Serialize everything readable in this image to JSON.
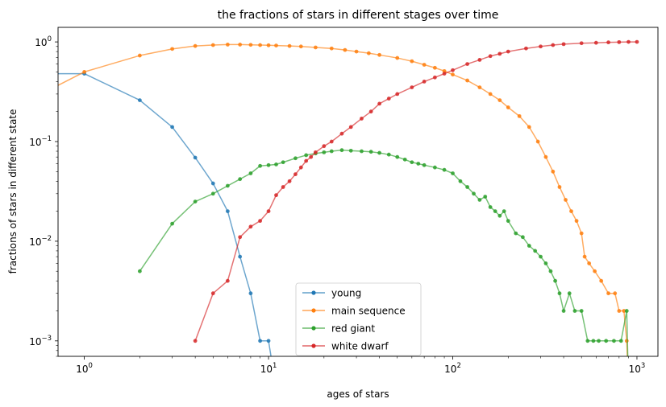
{
  "chart_data": {
    "type": "line",
    "title": "the fractions of stars in different stages over time",
    "xlabel": "ages of stars",
    "ylabel": "fractions of stars in different state",
    "xscale": "log",
    "yscale": "log",
    "xlim": [
      0.72,
      1300
    ],
    "ylim": [
      0.0007,
      1.4
    ],
    "grid": false,
    "legend_position": "lower-center",
    "x_ticks": [
      {
        "value": 1,
        "base": "10",
        "exp": "0"
      },
      {
        "value": 10,
        "base": "10",
        "exp": "1"
      },
      {
        "value": 100,
        "base": "10",
        "exp": "2"
      },
      {
        "value": 1000,
        "base": "10",
        "exp": "3"
      }
    ],
    "y_ticks": [
      {
        "value": 0.001,
        "base": "10",
        "exp": "−3"
      },
      {
        "value": 0.01,
        "base": "10",
        "exp": "−2"
      },
      {
        "value": 0.1,
        "base": "10",
        "exp": "−1"
      },
      {
        "value": 1,
        "base": "10",
        "exp": "0"
      }
    ],
    "series": [
      {
        "name": "young",
        "color": "#1f77b4",
        "points": [
          [
            0,
            0.48
          ],
          [
            1,
            0.48
          ],
          [
            2,
            0.26
          ],
          [
            3,
            0.14
          ],
          [
            4,
            0.069
          ],
          [
            5,
            0.038
          ],
          [
            6,
            0.02
          ],
          [
            7,
            0.007
          ],
          [
            8,
            0.003
          ],
          [
            9,
            0.001
          ],
          [
            10,
            0.001
          ],
          [
            11,
            0
          ]
        ]
      },
      {
        "name": "main sequence",
        "color": "#ff7f0e",
        "points": [
          [
            0,
            0.25
          ],
          [
            1,
            0.5
          ],
          [
            2,
            0.73
          ],
          [
            3,
            0.85
          ],
          [
            4,
            0.91
          ],
          [
            5,
            0.93
          ],
          [
            6,
            0.94
          ],
          [
            7,
            0.94
          ],
          [
            8,
            0.935
          ],
          [
            9,
            0.93
          ],
          [
            10,
            0.925
          ],
          [
            11,
            0.92
          ],
          [
            13,
            0.91
          ],
          [
            15,
            0.9
          ],
          [
            18,
            0.88
          ],
          [
            22,
            0.86
          ],
          [
            26,
            0.83
          ],
          [
            30,
            0.8
          ],
          [
            35,
            0.77
          ],
          [
            40,
            0.74
          ],
          [
            50,
            0.69
          ],
          [
            60,
            0.64
          ],
          [
            70,
            0.59
          ],
          [
            80,
            0.55
          ],
          [
            90,
            0.51
          ],
          [
            100,
            0.47
          ],
          [
            120,
            0.41
          ],
          [
            140,
            0.35
          ],
          [
            160,
            0.3
          ],
          [
            180,
            0.26
          ],
          [
            200,
            0.22
          ],
          [
            230,
            0.18
          ],
          [
            260,
            0.14
          ],
          [
            290,
            0.1
          ],
          [
            320,
            0.07
          ],
          [
            350,
            0.05
          ],
          [
            380,
            0.035
          ],
          [
            410,
            0.026
          ],
          [
            440,
            0.02
          ],
          [
            470,
            0.016
          ],
          [
            500,
            0.012
          ],
          [
            520,
            0.007
          ],
          [
            550,
            0.006
          ],
          [
            590,
            0.005
          ],
          [
            640,
            0.004
          ],
          [
            700,
            0.003
          ],
          [
            760,
            0.003
          ],
          [
            800,
            0.002
          ],
          [
            850,
            0.002
          ],
          [
            880,
            0.001
          ],
          [
            900,
            0
          ]
        ]
      },
      {
        "name": "red giant",
        "color": "#2ca02c",
        "points": [
          [
            2,
            0.005
          ],
          [
            3,
            0.015
          ],
          [
            4,
            0.025
          ],
          [
            5,
            0.03
          ],
          [
            6,
            0.036
          ],
          [
            7,
            0.042
          ],
          [
            8,
            0.048
          ],
          [
            9,
            0.057
          ],
          [
            10,
            0.058
          ],
          [
            11,
            0.059
          ],
          [
            12,
            0.062
          ],
          [
            14,
            0.068
          ],
          [
            16,
            0.073
          ],
          [
            18,
            0.076
          ],
          [
            20,
            0.078
          ],
          [
            22,
            0.08
          ],
          [
            25,
            0.082
          ],
          [
            28,
            0.081
          ],
          [
            32,
            0.08
          ],
          [
            36,
            0.079
          ],
          [
            40,
            0.077
          ],
          [
            45,
            0.074
          ],
          [
            50,
            0.07
          ],
          [
            55,
            0.066
          ],
          [
            60,
            0.062
          ],
          [
            65,
            0.06
          ],
          [
            70,
            0.058
          ],
          [
            80,
            0.055
          ],
          [
            90,
            0.052
          ],
          [
            100,
            0.048
          ],
          [
            110,
            0.04
          ],
          [
            120,
            0.035
          ],
          [
            130,
            0.03
          ],
          [
            140,
            0.026
          ],
          [
            150,
            0.028
          ],
          [
            160,
            0.022
          ],
          [
            170,
            0.02
          ],
          [
            180,
            0.018
          ],
          [
            190,
            0.02
          ],
          [
            200,
            0.016
          ],
          [
            220,
            0.012
          ],
          [
            240,
            0.011
          ],
          [
            260,
            0.009
          ],
          [
            280,
            0.008
          ],
          [
            300,
            0.007
          ],
          [
            320,
            0.006
          ],
          [
            340,
            0.005
          ],
          [
            360,
            0.004
          ],
          [
            380,
            0.003
          ],
          [
            400,
            0.002
          ],
          [
            430,
            0.003
          ],
          [
            460,
            0.002
          ],
          [
            500,
            0.002
          ],
          [
            540,
            0.001
          ],
          [
            580,
            0.001
          ],
          [
            620,
            0.001
          ],
          [
            680,
            0.001
          ],
          [
            750,
            0.001
          ],
          [
            820,
            0.001
          ],
          [
            880,
            0.002
          ],
          [
            900,
            0
          ]
        ]
      },
      {
        "name": "white dwarf",
        "color": "#d62728",
        "points": [
          [
            4,
            0.001
          ],
          [
            5,
            0.003
          ],
          [
            6,
            0.004
          ],
          [
            7,
            0.011
          ],
          [
            8,
            0.014
          ],
          [
            9,
            0.016
          ],
          [
            10,
            0.02
          ],
          [
            11,
            0.029
          ],
          [
            12,
            0.035
          ],
          [
            13,
            0.04
          ],
          [
            14,
            0.047
          ],
          [
            15,
            0.055
          ],
          [
            16,
            0.064
          ],
          [
            17,
            0.07
          ],
          [
            18,
            0.078
          ],
          [
            20,
            0.09
          ],
          [
            22,
            0.1
          ],
          [
            25,
            0.12
          ],
          [
            28,
            0.14
          ],
          [
            32,
            0.17
          ],
          [
            36,
            0.2
          ],
          [
            40,
            0.24
          ],
          [
            45,
            0.27
          ],
          [
            50,
            0.3
          ],
          [
            60,
            0.35
          ],
          [
            70,
            0.4
          ],
          [
            80,
            0.44
          ],
          [
            90,
            0.48
          ],
          [
            100,
            0.52
          ],
          [
            120,
            0.6
          ],
          [
            140,
            0.66
          ],
          [
            160,
            0.72
          ],
          [
            180,
            0.76
          ],
          [
            200,
            0.8
          ],
          [
            250,
            0.86
          ],
          [
            300,
            0.9
          ],
          [
            350,
            0.93
          ],
          [
            400,
            0.95
          ],
          [
            500,
            0.97
          ],
          [
            600,
            0.98
          ],
          [
            700,
            0.99
          ],
          [
            800,
            0.995
          ],
          [
            900,
            1.0
          ],
          [
            1000,
            1.0
          ]
        ]
      }
    ]
  }
}
